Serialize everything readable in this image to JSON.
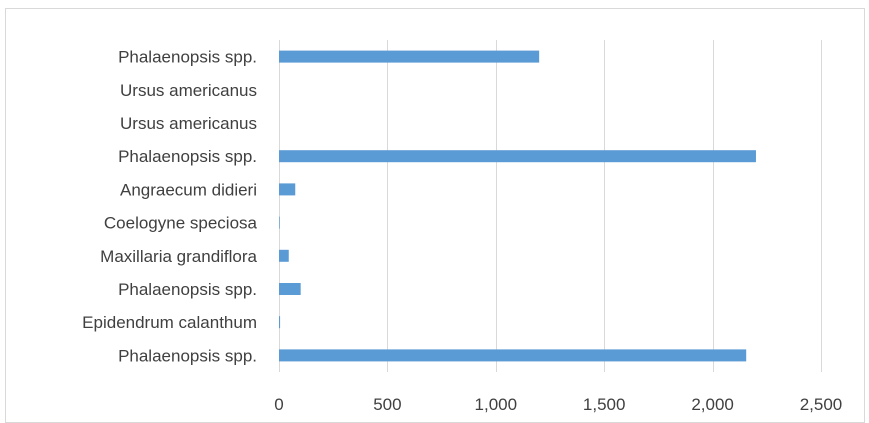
{
  "chart_data": {
    "type": "bar",
    "orientation": "horizontal",
    "categories": [
      "Phalaenopsis spp.",
      "Epidendrum calanthum",
      "Phalaenopsis spp.",
      "Maxillaria grandiflora",
      "Coelogyne speciosa",
      "Angraecum didieri",
      "Phalaenopsis spp.",
      "Ursus americanus",
      "Ursus americanus",
      "Phalaenopsis spp."
    ],
    "values": [
      2155,
      5,
      100,
      45,
      3,
      75,
      2200,
      0,
      0,
      1200
    ],
    "xlim": [
      0,
      2500
    ],
    "xticks": [
      0,
      500,
      1000,
      1500,
      2000,
      2500
    ],
    "xtick_labels": [
      "0",
      "500",
      "1,000",
      "1,500",
      "2,000",
      "2,500"
    ],
    "title": "",
    "xlabel": "",
    "ylabel": "",
    "grid": "vertical",
    "bar_color": "#5b9bd5",
    "grid_color": "#d9d9d9",
    "text_color": "#404040"
  }
}
